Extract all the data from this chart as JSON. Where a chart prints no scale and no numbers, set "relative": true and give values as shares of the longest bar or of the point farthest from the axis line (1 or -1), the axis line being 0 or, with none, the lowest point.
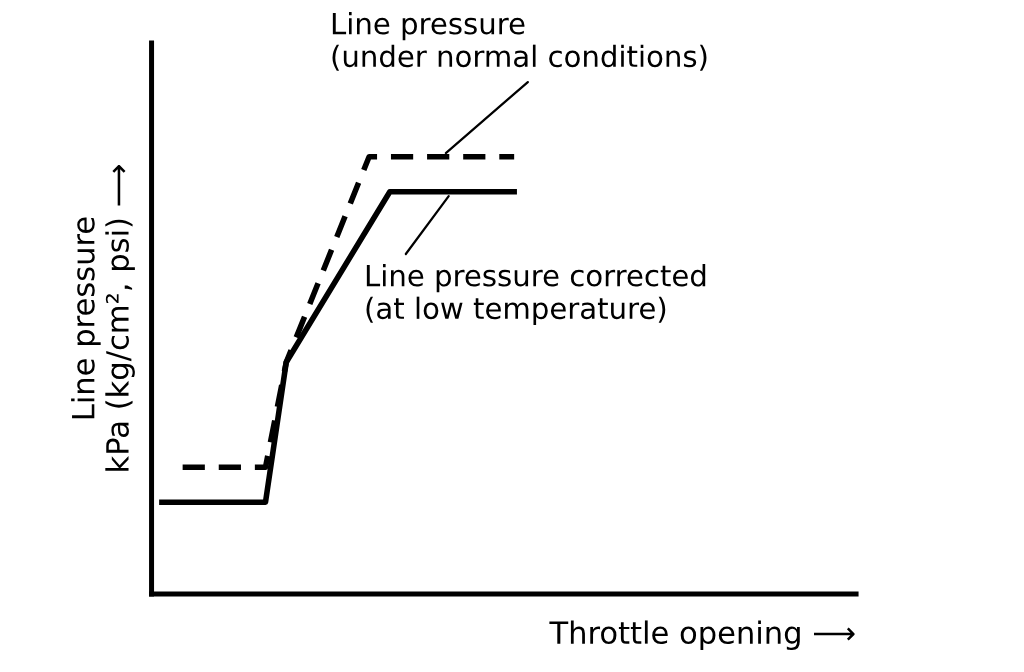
{
  "chart_data": {
    "type": "line",
    "relative": true,
    "xlabel": "Throttle opening ⟶",
    "ylabel": "Line pressure\nkPa (kg/cm², psi) ⟶",
    "marker": "none",
    "categories": [
      null,
      null,
      null,
      null,
      null,
      null,
      null,
      null,
      null,
      null,
      null,
      null,
      null,
      null,
      null,
      null,
      null,
      null,
      null,
      null,
      null,
      null,
      null,
      null,
      null,
      null,
      null,
      null,
      null,
      null,
      null,
      null,
      null,
      null
    ],
    "series": [
      {
        "color": "#000000",
        "line_style": "dashed",
        "values": [
          null,
          0.29,
          null,
          null,
          null,
          0.29,
          0.53,
          null,
          null,
          null,
          1,
          null,
          null,
          null,
          null,
          null,
          null,
          1,
          null,
          null,
          null,
          null,
          null,
          null,
          null,
          null,
          null,
          null,
          null,
          null,
          null,
          null,
          null,
          null
        ]
      },
      {
        "color": "#000000",
        "line_style": "solid",
        "values": [
          0.21,
          null,
          null,
          null,
          null,
          0.21,
          0.53,
          null,
          null,
          null,
          null,
          0.92,
          null,
          null,
          null,
          null,
          null,
          0.92,
          null,
          null,
          null,
          null,
          null,
          null,
          null,
          null,
          null,
          null,
          null,
          null,
          null,
          null,
          null,
          null
        ]
      }
    ],
    "annotations": [
      "Line pressure\n(under normal conditions)",
      "Line pressure corrected\n(at low temperature)"
    ]
  }
}
